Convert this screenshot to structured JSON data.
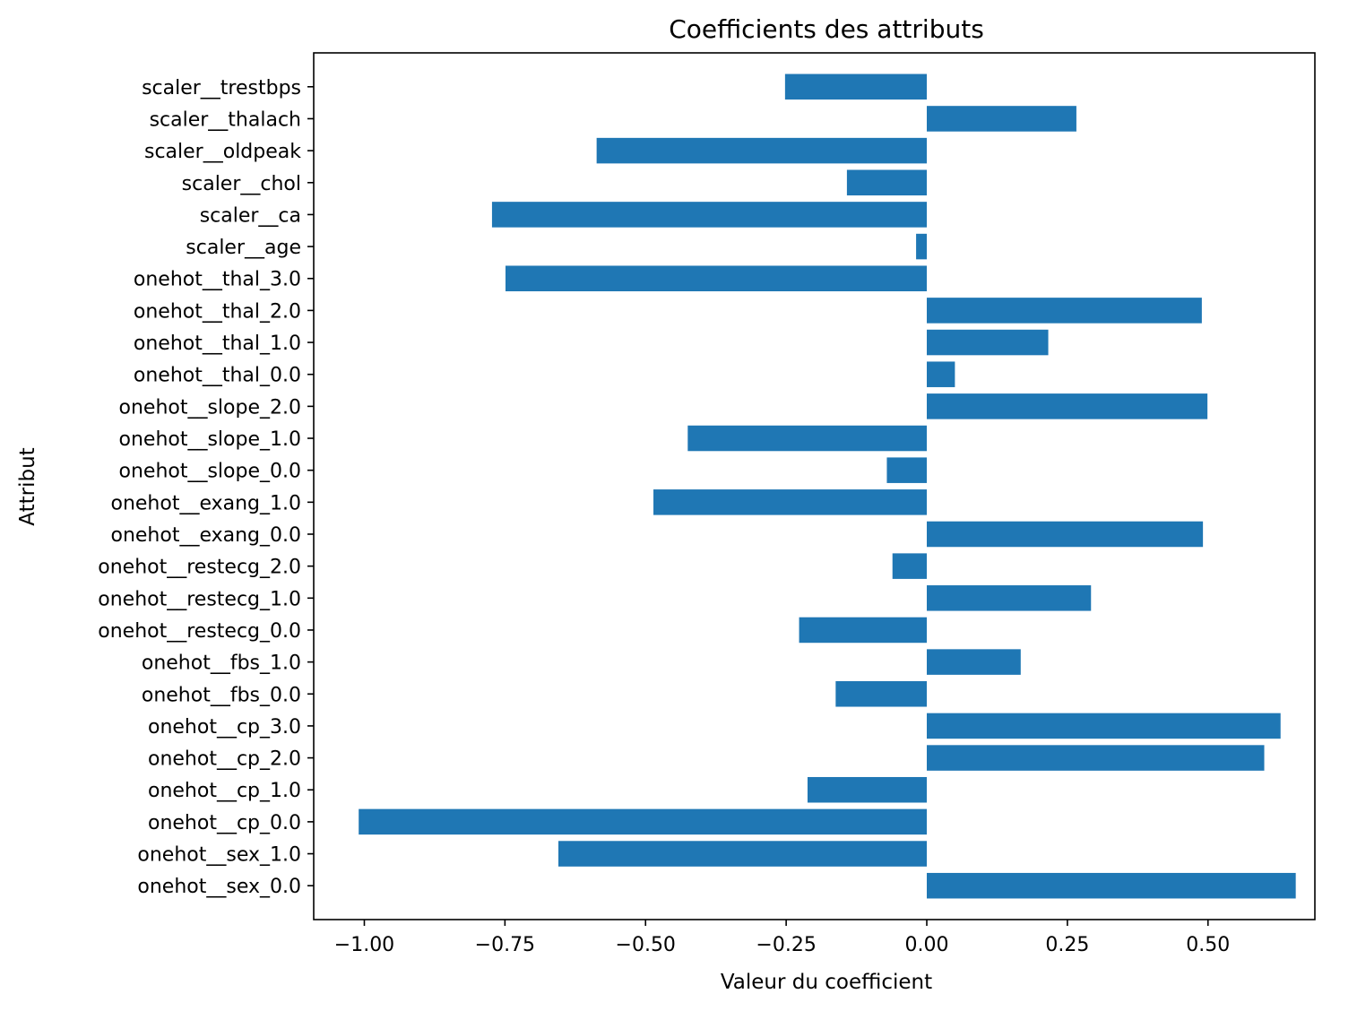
{
  "chart_data": {
    "type": "bar",
    "orientation": "horizontal",
    "title": "Coefficients des attributs",
    "xlabel": "Valeur du coefficient",
    "ylabel": "Attribut",
    "xlim": [
      -1.09,
      0.69
    ],
    "xticks": [
      -1.0,
      -0.75,
      -0.5,
      -0.25,
      0.0,
      0.25,
      0.5
    ],
    "xtick_labels": [
      "−1.00",
      "−0.75",
      "−0.50",
      "−0.25",
      "0.00",
      "0.25",
      "0.50"
    ],
    "grid": false,
    "bar_color": "#1f77b4",
    "categories": [
      "onehot__sex_0.0",
      "onehot__sex_1.0",
      "onehot__cp_0.0",
      "onehot__cp_1.0",
      "onehot__cp_2.0",
      "onehot__cp_3.0",
      "onehot__fbs_0.0",
      "onehot__fbs_1.0",
      "onehot__restecg_0.0",
      "onehot__restecg_1.0",
      "onehot__restecg_2.0",
      "onehot__exang_0.0",
      "onehot__exang_1.0",
      "onehot__slope_0.0",
      "onehot__slope_1.0",
      "onehot__slope_2.0",
      "onehot__thal_0.0",
      "onehot__thal_1.0",
      "onehot__thal_2.0",
      "onehot__thal_3.0",
      "scaler__age",
      "scaler__ca",
      "scaler__chol",
      "scaler__oldpeak",
      "scaler__thalach",
      "scaler__trestbps"
    ],
    "values": [
      0.656,
      -0.655,
      -1.01,
      -0.212,
      0.6,
      0.629,
      -0.162,
      0.167,
      -0.227,
      0.292,
      -0.061,
      0.491,
      -0.486,
      -0.071,
      -0.425,
      0.499,
      0.05,
      0.216,
      0.489,
      -0.749,
      -0.019,
      -0.773,
      -0.142,
      -0.587,
      0.266,
      -0.252
    ]
  }
}
